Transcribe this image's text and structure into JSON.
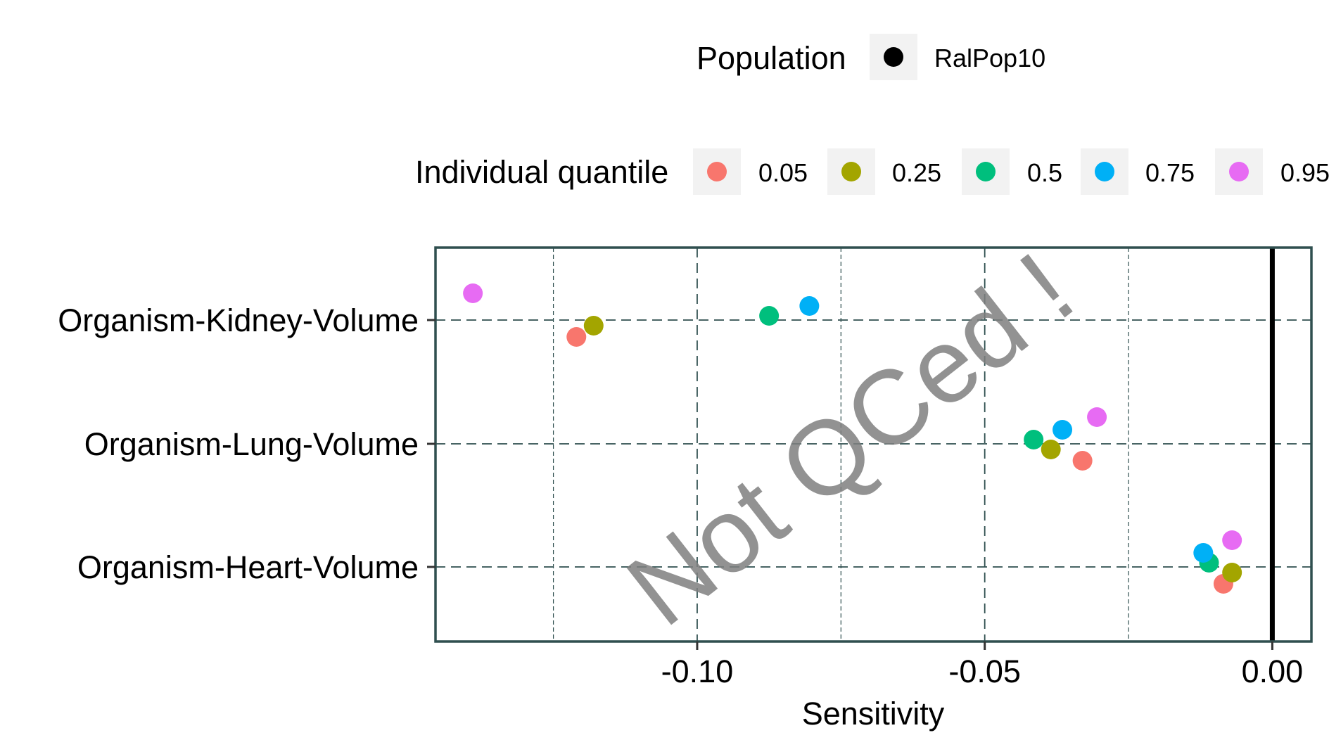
{
  "chart_data": {
    "type": "scatter",
    "xlabel": "Sensitivity",
    "ylabel": "",
    "xlim": [
      -0.1455,
      0.0068
    ],
    "x_ticks": [
      {
        "value": -0.1,
        "label": "-0.10"
      },
      {
        "value": -0.05,
        "label": "-0.05"
      },
      {
        "value": 0.0,
        "label": "0.00"
      }
    ],
    "x_minor_gridlines": [
      -0.125,
      -0.075,
      -0.025
    ],
    "categories": [
      "Organism-Heart-Volume",
      "Organism-Lung-Volume",
      "Organism-Kidney-Volume"
    ],
    "reference_line_x": 0,
    "grid": true,
    "legend_population": {
      "title": "Population",
      "items": [
        {
          "label": "RalPop10",
          "color": "#000000"
        }
      ]
    },
    "legend_quantile": {
      "title": "Individual quantile",
      "placement": "top",
      "items": [
        {
          "label": "0.05",
          "color": "#F8766D"
        },
        {
          "label": "0.25",
          "color": "#A3A500"
        },
        {
          "label": "0.5",
          "color": "#00BF7D"
        },
        {
          "label": "0.75",
          "color": "#00B0F6"
        },
        {
          "label": "0.95",
          "color": "#E76BF3"
        }
      ]
    },
    "series": [
      {
        "name": "0.05",
        "color": "#F8766D",
        "points": [
          {
            "category": "Organism-Kidney-Volume",
            "value": -0.121
          },
          {
            "category": "Organism-Lung-Volume",
            "value": -0.033
          },
          {
            "category": "Organism-Heart-Volume",
            "value": -0.0085
          }
        ]
      },
      {
        "name": "0.25",
        "color": "#A3A500",
        "points": [
          {
            "category": "Organism-Kidney-Volume",
            "value": -0.118
          },
          {
            "category": "Organism-Lung-Volume",
            "value": -0.0385
          },
          {
            "category": "Organism-Heart-Volume",
            "value": -0.007
          }
        ]
      },
      {
        "name": "0.5",
        "color": "#00BF7D",
        "points": [
          {
            "category": "Organism-Kidney-Volume",
            "value": -0.0875
          },
          {
            "category": "Organism-Lung-Volume",
            "value": -0.0415
          },
          {
            "category": "Organism-Heart-Volume",
            "value": -0.011
          }
        ]
      },
      {
        "name": "0.75",
        "color": "#00B0F6",
        "points": [
          {
            "category": "Organism-Kidney-Volume",
            "value": -0.0805
          },
          {
            "category": "Organism-Lung-Volume",
            "value": -0.0365
          },
          {
            "category": "Organism-Heart-Volume",
            "value": -0.012
          }
        ]
      },
      {
        "name": "0.95",
        "color": "#E76BF3",
        "points": [
          {
            "category": "Organism-Kidney-Volume",
            "value": -0.139
          },
          {
            "category": "Organism-Lung-Volume",
            "value": -0.0305
          },
          {
            "category": "Organism-Heart-Volume",
            "value": -0.007
          }
        ]
      }
    ]
  },
  "watermark": "Not QCed !"
}
